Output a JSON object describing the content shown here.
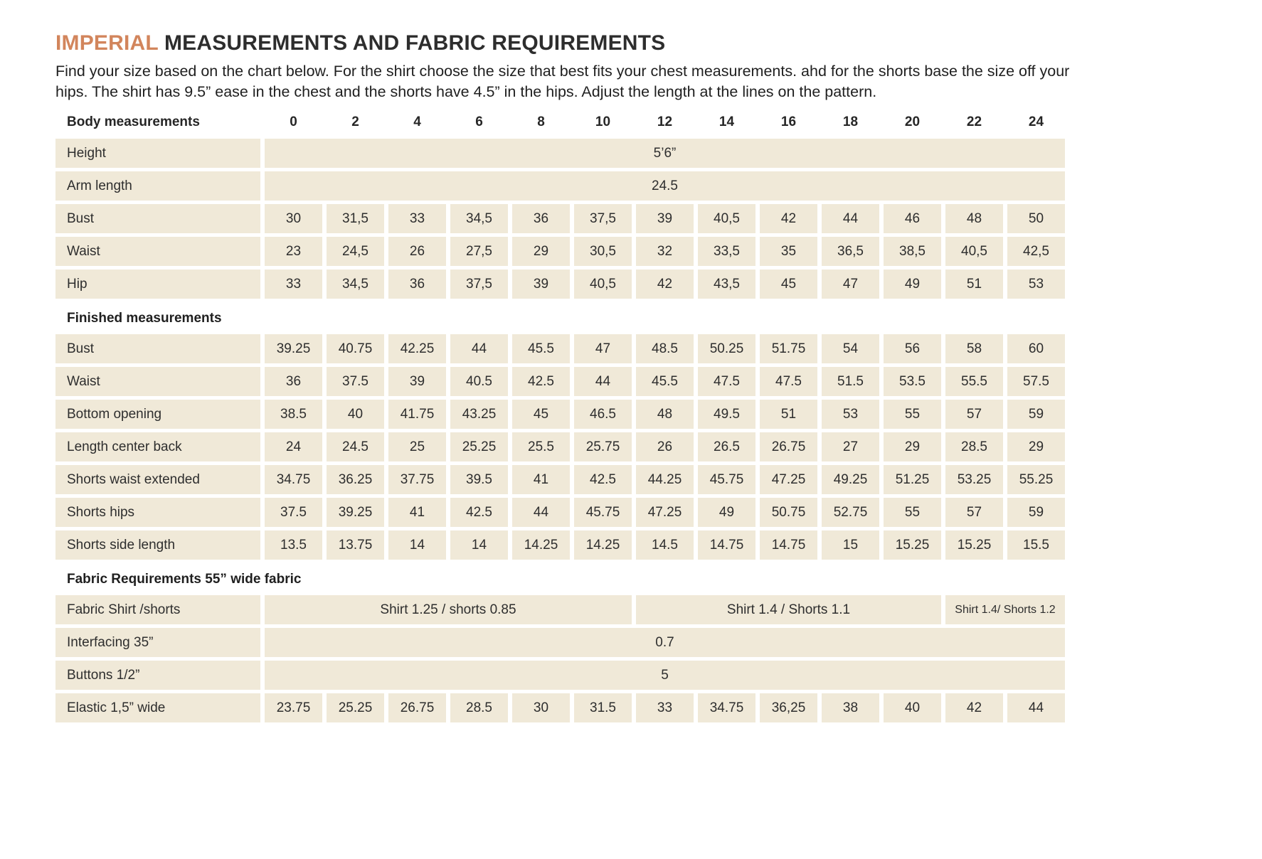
{
  "colors": {
    "accent": "#d2855c",
    "cell_bg": "#f0e9d8",
    "text": "#262626"
  },
  "page": {
    "title_accent": "IMPERIAL",
    "title_rest": " MEASUREMENTS AND FABRIC REQUIREMENTS",
    "intro": "Find your size based on the chart below. For the shirt choose the size that best fits your chest measurements.  ahd for the shorts base the size off your hips. The shirt  has 9.5” ease in the chest and the shorts have 4.5” in the hips. Adjust the length at the lines on the pattern."
  },
  "table": {
    "header": {
      "label": "Body measurements",
      "sizes": [
        "0",
        "2",
        "4",
        "6",
        "8",
        "10",
        "12",
        "14",
        "16",
        "18",
        "20",
        "22",
        "24"
      ]
    },
    "sections": [
      {
        "heading": null,
        "rows": [
          {
            "label": "Height",
            "span_value": "5’6”"
          },
          {
            "label": "Arm length",
            "span_value": "24.5"
          },
          {
            "label": "Bust",
            "cells": [
              "30",
              "31,5",
              "33",
              "34,5",
              "36",
              "37,5",
              "39",
              "40,5",
              "42",
              "44",
              "46",
              "48",
              "50"
            ]
          },
          {
            "label": "Waist",
            "cells": [
              "23",
              "24,5",
              "26",
              "27,5",
              "29",
              "30,5",
              "32",
              "33,5",
              "35",
              "36,5",
              "38,5",
              "40,5",
              "42,5"
            ]
          },
          {
            "label": "Hip",
            "cells": [
              "33",
              "34,5",
              "36",
              "37,5",
              "39",
              "40,5",
              "42",
              "43,5",
              "45",
              "47",
              "49",
              "51",
              "53"
            ]
          }
        ]
      },
      {
        "heading": "Finished measurements",
        "rows": [
          {
            "label": "Bust",
            "cells": [
              "39.25",
              "40.75",
              "42.25",
              "44",
              "45.5",
              "47",
              "48.5",
              "50.25",
              "51.75",
              "54",
              "56",
              "58",
              "60"
            ]
          },
          {
            "label": "Waist",
            "cells": [
              "36",
              "37.5",
              "39",
              "40.5",
              "42.5",
              "44",
              "45.5",
              "47.5",
              "47.5",
              "51.5",
              "53.5",
              "55.5",
              "57.5"
            ]
          },
          {
            "label": "Bottom opening",
            "cells": [
              "38.5",
              "40",
              "41.75",
              "43.25",
              "45",
              "46.5",
              "48",
              "49.5",
              "51",
              "53",
              "55",
              "57",
              "59"
            ]
          },
          {
            "label": "Length center back",
            "cells": [
              "24",
              "24.5",
              "25",
              "25.25",
              "25.5",
              "25.75",
              "26",
              "26.5",
              "26.75",
              "27",
              "29",
              "28.5",
              "29"
            ]
          },
          {
            "label": "Shorts waist extended",
            "cells": [
              "34.75",
              "36.25",
              "37.75",
              "39.5",
              "41",
              "42.5",
              "44.25",
              "45.75",
              "47.25",
              "49.25",
              "51.25",
              "53.25",
              "55.25"
            ]
          },
          {
            "label": "Shorts hips",
            "cells": [
              "37.5",
              "39.25",
              "41",
              "42.5",
              "44",
              "45.75",
              "47.25",
              "49",
              "50.75",
              "52.75",
              "55",
              "57",
              "59"
            ]
          },
          {
            "label": "Shorts side length",
            "cells": [
              "13.5",
              "13.75",
              "14",
              "14",
              "14.25",
              "14.25",
              "14.5",
              "14.75",
              "14.75",
              "15",
              "15.25",
              "15.25",
              "15.5"
            ]
          }
        ]
      },
      {
        "heading": "Fabric Requirements 55” wide fabric",
        "rows": [
          {
            "label": "Fabric Shirt /shorts",
            "spans": [
              {
                "cols": 6,
                "value": "Shirt 1.25 / shorts 0.85"
              },
              {
                "cols": 5,
                "value": "Shirt 1.4 /  Shorts 1.1"
              },
              {
                "cols": 2,
                "value": "Shirt 1.4/ Shorts 1.2",
                "small": true
              }
            ]
          },
          {
            "label": "Interfacing 35”",
            "span_value": "0.7"
          },
          {
            "label": "Buttons 1/2”",
            "span_value": "5"
          },
          {
            "label": "Elastic 1,5” wide",
            "cells": [
              "23.75",
              "25.25",
              "26.75",
              "28.5",
              "30",
              "31.5",
              "33",
              "34.75",
              "36,25",
              "38",
              "40",
              "42",
              "44"
            ]
          }
        ]
      }
    ]
  }
}
